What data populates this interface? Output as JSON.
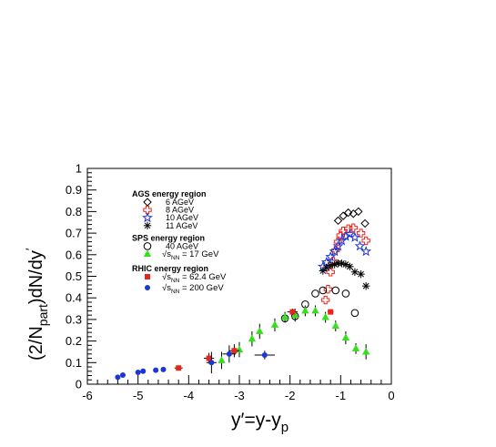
{
  "chart_data": {
    "type": "scatter",
    "xlabel": "y′=y-y",
    "xlabel_sub": "p",
    "ylabel_parts": [
      "(2/N",
      "part",
      ")dN/dy",
      "′"
    ],
    "xlim": [
      -6,
      0
    ],
    "ylim": [
      0,
      1
    ],
    "x_ticks": [
      "-6",
      "-5",
      "-4",
      "-3",
      "-2",
      "-1",
      "0"
    ],
    "y_ticks": [
      "0",
      "0.1",
      "0.2",
      "0.3",
      "0.4",
      "0.5",
      "0.6",
      "0.7",
      "0.8",
      "0.9",
      "1"
    ],
    "grid": false,
    "legend_position": "top-left",
    "legend_groups": [
      {
        "title": "AGS energy region",
        "series": [
          "ags6",
          "ags8",
          "ags10",
          "ags11"
        ]
      },
      {
        "title": "SPS energy region",
        "series": [
          "sps40",
          "sps17"
        ]
      },
      {
        "title": "RHIC energy region",
        "series": [
          "rhic62",
          "rhic200"
        ]
      }
    ],
    "series": [
      {
        "id": "ags6",
        "name": "6  AGeV",
        "marker": "diamond-open",
        "color": "#000000",
        "points": [
          [
            -1.05,
            0.758
          ],
          [
            -0.95,
            0.78
          ],
          [
            -0.85,
            0.795
          ],
          [
            -0.75,
            0.79
          ],
          [
            -0.65,
            0.8
          ],
          [
            -0.52,
            0.745
          ]
        ]
      },
      {
        "id": "ags8",
        "name": "8 AGeV",
        "marker": "cross-open",
        "color": "#e8251c",
        "points": [
          [
            -1.3,
            0.39
          ],
          [
            -1.25,
            0.44
          ],
          [
            -1.2,
            0.52
          ],
          [
            -1.15,
            0.57
          ],
          [
            -1.1,
            0.62
          ],
          [
            -1.05,
            0.66
          ],
          [
            -1.0,
            0.69
          ],
          [
            -0.95,
            0.71
          ],
          [
            -0.85,
            0.72
          ],
          [
            -0.75,
            0.725
          ],
          [
            -0.6,
            0.7
          ],
          [
            -0.5,
            0.665
          ]
        ]
      },
      {
        "id": "ags10",
        "name": "10  AGeV",
        "marker": "star-open",
        "color": "#1c35d6",
        "points": [
          [
            -1.35,
            0.545
          ],
          [
            -1.28,
            0.565
          ],
          [
            -1.2,
            0.59
          ],
          [
            -1.12,
            0.615
          ],
          [
            -1.05,
            0.64
          ],
          [
            -0.98,
            0.665
          ],
          [
            -0.9,
            0.685
          ],
          [
            -0.82,
            0.695
          ],
          [
            -0.72,
            0.68
          ],
          [
            -0.62,
            0.64
          ],
          [
            -0.5,
            0.615
          ]
        ]
      },
      {
        "id": "ags11",
        "name": "11  AGeV",
        "marker": "asterisk",
        "color": "#000000",
        "points": [
          [
            -1.35,
            0.525
          ],
          [
            -1.28,
            0.54
          ],
          [
            -1.2,
            0.55
          ],
          [
            -1.12,
            0.555
          ],
          [
            -1.05,
            0.56
          ],
          [
            -0.98,
            0.56
          ],
          [
            -0.9,
            0.555
          ],
          [
            -0.82,
            0.545
          ],
          [
            -0.72,
            0.52
          ],
          [
            -0.6,
            0.51
          ],
          [
            -0.5,
            0.455
          ]
        ]
      },
      {
        "id": "sps40",
        "name": "40  AGeV",
        "marker": "circle-open",
        "color": "#000000",
        "points": [
          [
            -2.1,
            0.305
          ],
          [
            -1.9,
            0.315
          ],
          [
            -1.7,
            0.37
          ],
          [
            -1.5,
            0.42
          ],
          [
            -1.35,
            0.435
          ],
          [
            -1.1,
            0.435
          ],
          [
            -0.9,
            0.42
          ],
          [
            -0.72,
            0.33
          ]
        ]
      },
      {
        "id": "sps17",
        "name": "√s",
        "name_sub": "NN",
        "name_tail": " = 17 GeV",
        "marker": "triangle",
        "color": "#33e01a",
        "points": [
          [
            -3.35,
            0.11,
            0.04
          ],
          [
            -3.0,
            0.16,
            0.035
          ],
          [
            -2.75,
            0.21,
            0.035
          ],
          [
            -2.6,
            0.245,
            0.035
          ],
          [
            -2.3,
            0.275,
            0.03
          ],
          [
            -2.1,
            0.31,
            0.025
          ],
          [
            -1.9,
            0.32,
            0.03
          ],
          [
            -1.7,
            0.34,
            0.025
          ],
          [
            -1.5,
            0.34,
            0.025
          ],
          [
            -1.3,
            0.31,
            0.025
          ],
          [
            -1.1,
            0.27,
            0.025
          ],
          [
            -0.9,
            0.215,
            0.03
          ],
          [
            -0.7,
            0.165,
            0.025
          ],
          [
            -0.5,
            0.15,
            0.035
          ]
        ]
      },
      {
        "id": "rhic62",
        "name": "√s",
        "name_sub": "NN",
        "name_tail": " = 62.4 GeV",
        "marker": "square",
        "color": "#e8251c",
        "points": [
          [
            -4.2,
            0.075,
            0.01,
            0.08
          ],
          [
            -3.6,
            0.12,
            0.025,
            0.1
          ],
          [
            -3.1,
            0.155,
            0.03,
            0.1
          ],
          [
            -1.95,
            0.335,
            0.015,
            0.1
          ],
          [
            -1.2,
            0.335,
            0.01,
            0.06
          ]
        ]
      },
      {
        "id": "rhic200",
        "name": "√s",
        "name_sub": "NN",
        "name_tail": " = 200 GeV",
        "marker": "circle",
        "color": "#1c35d6",
        "points": [
          [
            -5.4,
            0.032,
            0,
            0
          ],
          [
            -5.3,
            0.042,
            0,
            0
          ],
          [
            -5.0,
            0.055,
            0,
            0
          ],
          [
            -4.9,
            0.06,
            0,
            0
          ],
          [
            -4.65,
            0.065,
            0,
            0
          ],
          [
            -4.5,
            0.068,
            0,
            0
          ],
          [
            -3.55,
            0.1,
            0.05,
            0.1
          ],
          [
            -3.2,
            0.14,
            0.04,
            0.13
          ],
          [
            -2.5,
            0.135,
            0.02,
            0.2
          ]
        ]
      }
    ]
  }
}
